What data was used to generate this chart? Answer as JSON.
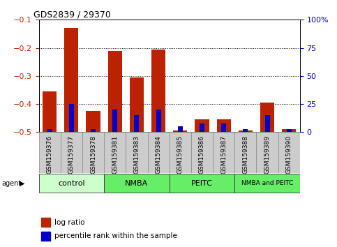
{
  "title": "GDS2839 / 29370",
  "samples": [
    "GSM159376",
    "GSM159377",
    "GSM159378",
    "GSM159381",
    "GSM159383",
    "GSM159384",
    "GSM159385",
    "GSM159386",
    "GSM159387",
    "GSM159388",
    "GSM159389",
    "GSM159390"
  ],
  "log_ratio": [
    -0.355,
    -0.13,
    -0.425,
    -0.21,
    -0.305,
    -0.205,
    -0.495,
    -0.455,
    -0.455,
    -0.495,
    -0.395,
    -0.49
  ],
  "percentile": [
    3,
    25,
    3,
    20,
    15,
    20,
    5,
    8,
    8,
    3,
    15,
    3
  ],
  "ylim_left": [
    -0.5,
    -0.1
  ],
  "ylim_right": [
    0,
    100
  ],
  "yticks_left": [
    -0.5,
    -0.4,
    -0.3,
    -0.2,
    -0.1
  ],
  "yticks_right": [
    0,
    25,
    50,
    75,
    100
  ],
  "bar_width": 0.65,
  "blue_bar_width": 0.22,
  "red_color": "#BB2200",
  "blue_color": "#0000CC",
  "groups": [
    {
      "label": "control",
      "start": 0,
      "end": 3,
      "color": "#CCFFCC"
    },
    {
      "label": "NMBA",
      "start": 3,
      "end": 6,
      "color": "#66EE66"
    },
    {
      "label": "PEITC",
      "start": 6,
      "end": 9,
      "color": "#66EE66"
    },
    {
      "label": "NMBA and PEITC",
      "start": 9,
      "end": 12,
      "color": "#66EE66"
    }
  ],
  "tick_bg_color": "#CCCCCC",
  "plot_bg_color": "#FFFFFF"
}
